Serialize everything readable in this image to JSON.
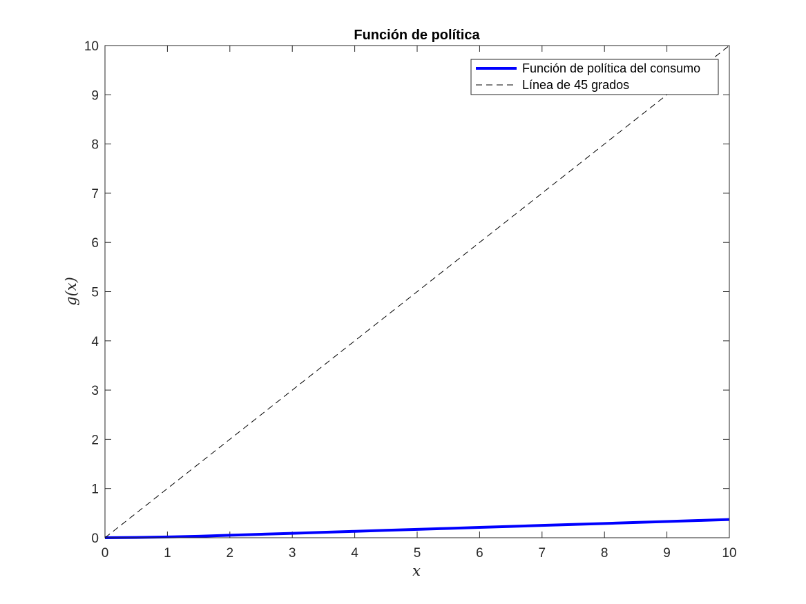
{
  "chart_data": {
    "type": "line",
    "title": "Función de política",
    "xlabel": "x",
    "ylabel": "g(x)",
    "xlim": [
      0,
      10
    ],
    "ylim": [
      0,
      10
    ],
    "xticks": [
      0,
      1,
      2,
      3,
      4,
      5,
      6,
      7,
      8,
      9,
      10
    ],
    "yticks": [
      0,
      1,
      2,
      3,
      4,
      5,
      6,
      7,
      8,
      9,
      10
    ],
    "grid": false,
    "legend_position": "top-right",
    "series": [
      {
        "name": "Función de política del consumo",
        "color": "#0000ff",
        "style": "solid",
        "x": [
          0,
          0.5,
          1,
          1.5,
          2,
          2.5,
          3,
          3.5,
          4,
          4.5,
          5,
          5.5,
          6,
          6.5,
          7,
          7.5,
          8,
          8.5,
          9,
          9.5,
          10
        ],
        "y": [
          0,
          0.005,
          0.015,
          0.03,
          0.05,
          0.07,
          0.09,
          0.11,
          0.13,
          0.15,
          0.17,
          0.19,
          0.21,
          0.23,
          0.25,
          0.27,
          0.29,
          0.31,
          0.33,
          0.35,
          0.37
        ]
      },
      {
        "name": "Línea de 45 grados",
        "color": "#000000",
        "style": "dashed",
        "x": [
          0,
          10
        ],
        "y": [
          0,
          10
        ]
      }
    ]
  }
}
